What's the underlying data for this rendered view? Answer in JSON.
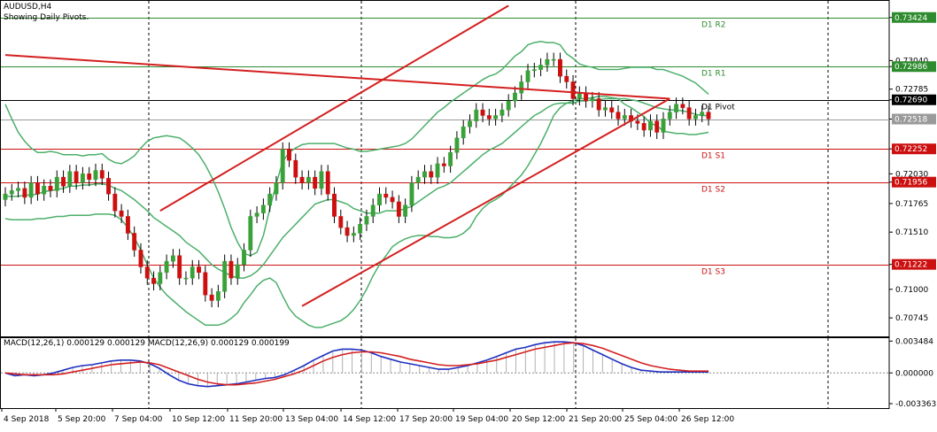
{
  "header": {
    "symbol_label": "AUDUSD,H4",
    "subtitle": "Showing Daily Pivots."
  },
  "colors": {
    "background": "#ffffff",
    "grid": "#000000",
    "bull_body": "#3aa13a",
    "bear_body": "#cc1010",
    "bollinger": "#4caf6a",
    "trendline": "#d41f1f",
    "pivot_resistance": "#2e8b2e",
    "pivot_support": "#cc1010",
    "pivot_main": "#000000",
    "macd_main": "#1f2fbf",
    "macd_signal": "#d41f1f",
    "macd_hist": "#b0b0b0",
    "price_tag_green": "#2e8b2e",
    "price_tag_red": "#cc1010",
    "price_tag_black": "#000000",
    "price_tag_gray": "#9a9a9a"
  },
  "chart_data": [
    {
      "type": "candlestick",
      "title": "AUDUSD,H4",
      "ylim": [
        0.7058,
        0.7358
      ],
      "y_ticks": [
        "0.73424",
        "0.73040",
        "0.72986",
        "0.72785",
        "0.72690",
        "0.72518",
        "0.72252",
        "0.72030",
        "0.71956",
        "0.71765",
        "0.71510",
        "0.71222",
        "0.71000",
        "0.70745"
      ],
      "x_tick_labels": [
        "4 Sep 2018",
        "5 Sep 20:00",
        "7 Sep 04:00",
        "10 Sep 12:00",
        "11 Sep 20:00",
        "13 Sep 04:00",
        "14 Sep 12:00",
        "17 Sep 20:00",
        "19 Sep 04:00",
        "20 Sep 12:00",
        "21 Sep 20:00",
        "25 Sep 04:00",
        "26 Sep 12:00"
      ],
      "pivots": [
        {
          "label": "D1 R2",
          "value": 0.73424,
          "tag": "0.73424",
          "kind": "resistance"
        },
        {
          "label": "D1 R1",
          "value": 0.72986,
          "tag": "0.72986",
          "kind": "resistance"
        },
        {
          "label": "D1 Pivot",
          "value": 0.7269,
          "tag": "0.72690",
          "kind": "pivot"
        },
        {
          "label": "D1 S1",
          "value": 0.72252,
          "tag": "0.72252",
          "kind": "support"
        },
        {
          "label": "D1 S2",
          "value": 0.71956,
          "tag": "0.71956",
          "kind": "support"
        },
        {
          "label": "D1 S3",
          "value": 0.71222,
          "tag": "0.71222",
          "kind": "support"
        }
      ],
      "current_price": {
        "value": 0.72518,
        "tag": "0.72518"
      },
      "close": [
        0.7185,
        0.7188,
        0.719,
        0.7182,
        0.7195,
        0.7185,
        0.7192,
        0.7188,
        0.72,
        0.7192,
        0.7205,
        0.7195,
        0.7203,
        0.7198,
        0.7206,
        0.7199,
        0.7185,
        0.717,
        0.7165,
        0.715,
        0.7135,
        0.712,
        0.711,
        0.7105,
        0.7115,
        0.7125,
        0.713,
        0.711,
        0.711,
        0.712,
        0.7115,
        0.7095,
        0.709,
        0.7098,
        0.7125,
        0.711,
        0.7122,
        0.7135,
        0.7165,
        0.7168,
        0.7175,
        0.7185,
        0.7195,
        0.7225,
        0.7215,
        0.72,
        0.7195,
        0.72,
        0.719,
        0.7205,
        0.7185,
        0.7165,
        0.7155,
        0.7148,
        0.715,
        0.7158,
        0.7165,
        0.7175,
        0.7185,
        0.7182,
        0.7178,
        0.7165,
        0.7175,
        0.7195,
        0.72,
        0.7205,
        0.72,
        0.7212,
        0.721,
        0.7222,
        0.7235,
        0.7245,
        0.725,
        0.726,
        0.7255,
        0.7252,
        0.7255,
        0.726,
        0.7268,
        0.7275,
        0.7285,
        0.7295,
        0.7296,
        0.73,
        0.7305,
        0.7305,
        0.729,
        0.7285,
        0.727,
        0.7275,
        0.7268,
        0.727,
        0.726,
        0.7262,
        0.7258,
        0.7252,
        0.7255,
        0.725,
        0.7248,
        0.7242,
        0.725,
        0.724,
        0.7252,
        0.7258,
        0.7265,
        0.7262,
        0.7252,
        0.7255,
        0.7258,
        0.7252
      ],
      "bollinger_upper": [
        0.7265,
        0.7252,
        0.724,
        0.7232,
        0.7226,
        0.7222,
        0.7222,
        0.7223,
        0.7222,
        0.722,
        0.722,
        0.722,
        0.7219,
        0.722,
        0.722,
        0.7221,
        0.7216,
        0.7213,
        0.7212,
        0.7215,
        0.7219,
        0.7226,
        0.7232,
        0.7235,
        0.7236,
        0.7237,
        0.7236,
        0.7235,
        0.7231,
        0.7226,
        0.722,
        0.7211,
        0.72,
        0.7187,
        0.7172,
        0.7155,
        0.7142,
        0.7132,
        0.713,
        0.7133,
        0.7148,
        0.7172,
        0.7194,
        0.7214,
        0.7222,
        0.7226,
        0.7229,
        0.723,
        0.723,
        0.723,
        0.723,
        0.723,
        0.7228,
        0.7226,
        0.7225,
        0.7223,
        0.7223,
        0.7224,
        0.7225,
        0.7226,
        0.7227,
        0.7228,
        0.723,
        0.7234,
        0.724,
        0.7246,
        0.7252,
        0.7258,
        0.7262,
        0.7267,
        0.7271,
        0.7275,
        0.7279,
        0.7283,
        0.7287,
        0.729,
        0.7292,
        0.7296,
        0.7302,
        0.7308,
        0.7312,
        0.7318,
        0.732,
        0.7321,
        0.732,
        0.732,
        0.7318,
        0.731,
        0.7306,
        0.7301,
        0.7299,
        0.7298,
        0.7296,
        0.7296,
        0.7296,
        0.7296,
        0.7297,
        0.7298,
        0.7298,
        0.7298,
        0.7298,
        0.7296,
        0.7296,
        0.7294,
        0.7292,
        0.729,
        0.7287,
        0.7284,
        0.7279,
        0.7274
      ],
      "bollinger_middle": [
        0.7183,
        0.7183,
        0.7183,
        0.7184,
        0.7184,
        0.7185,
        0.7187,
        0.7188,
        0.7189,
        0.719,
        0.7192,
        0.7192,
        0.7193,
        0.7193,
        0.7194,
        0.7194,
        0.7193,
        0.719,
        0.7188,
        0.7184,
        0.718,
        0.7175,
        0.717,
        0.7164,
        0.716,
        0.7156,
        0.7152,
        0.7148,
        0.7142,
        0.7138,
        0.7134,
        0.7128,
        0.7122,
        0.7118,
        0.7115,
        0.7112,
        0.711,
        0.711,
        0.7112,
        0.7116,
        0.7122,
        0.713,
        0.7138,
        0.7146,
        0.7152,
        0.7158,
        0.7164,
        0.717,
        0.7176,
        0.7178,
        0.718,
        0.718,
        0.7178,
        0.7176,
        0.7172,
        0.717,
        0.7168,
        0.7168,
        0.7168,
        0.717,
        0.717,
        0.717,
        0.7172,
        0.7174,
        0.7178,
        0.7182,
        0.7186,
        0.719,
        0.7192,
        0.7195,
        0.72,
        0.7205,
        0.721,
        0.7215,
        0.722,
        0.7224,
        0.7227,
        0.723,
        0.7235,
        0.724,
        0.7245,
        0.725,
        0.7255,
        0.7258,
        0.7262,
        0.7265,
        0.7266,
        0.7266,
        0.7266,
        0.7268,
        0.7268,
        0.7269,
        0.7269,
        0.727,
        0.727,
        0.727,
        0.727,
        0.7269,
        0.7268,
        0.7266,
        0.7264,
        0.7262,
        0.7261,
        0.726,
        0.726,
        0.7259,
        0.7258,
        0.7256,
        0.7255,
        0.7255
      ],
      "bollinger_lower": [
        0.7163,
        0.7162,
        0.7162,
        0.7162,
        0.7162,
        0.7163,
        0.7163,
        0.7164,
        0.7165,
        0.7165,
        0.7166,
        0.7166,
        0.7166,
        0.7166,
        0.7167,
        0.7167,
        0.7167,
        0.7166,
        0.7162,
        0.7155,
        0.7146,
        0.7135,
        0.7122,
        0.711,
        0.7102,
        0.7095,
        0.709,
        0.7085,
        0.708,
        0.7076,
        0.7072,
        0.7068,
        0.7068,
        0.7068,
        0.707,
        0.7074,
        0.7079,
        0.7088,
        0.7095,
        0.7103,
        0.7108,
        0.711,
        0.7106,
        0.7094,
        0.7083,
        0.7076,
        0.7072,
        0.7068,
        0.7066,
        0.7066,
        0.7068,
        0.707,
        0.7072,
        0.7076,
        0.7082,
        0.709,
        0.71,
        0.7112,
        0.7122,
        0.713,
        0.7138,
        0.7142,
        0.7145,
        0.7147,
        0.7148,
        0.7148,
        0.7147,
        0.7147,
        0.7146,
        0.7146,
        0.7147,
        0.715,
        0.7155,
        0.7165,
        0.7172,
        0.7177,
        0.718,
        0.7184,
        0.719,
        0.7196,
        0.7202,
        0.721,
        0.722,
        0.723,
        0.7242,
        0.7255,
        0.7262,
        0.7266,
        0.7268,
        0.727,
        0.727,
        0.7271,
        0.7272,
        0.7272,
        0.7271,
        0.727,
        0.7265,
        0.7262,
        0.7258,
        0.7254,
        0.7248,
        0.7246,
        0.7241,
        0.724,
        0.7239,
        0.7239,
        0.7238,
        0.7238,
        0.7239,
        0.724
      ],
      "trendlines": [
        {
          "name": "upper-channel",
          "x": [
            24,
            78
          ],
          "y": [
            0.717,
            0.7353
          ]
        },
        {
          "name": "lower-channel",
          "x": [
            46,
            103
          ],
          "y": [
            0.7085,
            0.727
          ]
        },
        {
          "name": "horizontal-resistance",
          "x": [
            0,
            103
          ],
          "y": [
            0.7309,
            0.727
          ]
        }
      ]
    },
    {
      "type": "line",
      "title": "MACD(12,26,1) 0.000129 0.000129 MACD(12,26,9) 0.000129 0.000199",
      "ylim": [
        -0.00385,
        0.0039
      ],
      "y_ticks": [
        "0.003484",
        "0.000000",
        "-0.003363"
      ],
      "series": [
        {
          "name": "MACD",
          "values": [
            0.0,
            -0.0003,
            -0.0002,
            -0.0003,
            -0.0002,
            0.0,
            0.0003,
            0.0006,
            0.0008,
            0.0009,
            0.0011,
            0.0013,
            0.0014,
            0.0014,
            0.0013,
            0.001,
            0.0005,
            -0.0002,
            -0.0008,
            -0.0012,
            -0.0014,
            -0.0015,
            -0.0014,
            -0.0013,
            -0.0012,
            -0.001,
            -0.0008,
            -0.0006,
            -0.0005,
            -0.0002,
            0.0003,
            0.0008,
            0.0014,
            0.0019,
            0.0024,
            0.0026,
            0.0026,
            0.0025,
            0.0022,
            0.0018,
            0.0015,
            0.0012,
            0.001,
            0.0008,
            0.0006,
            0.0004,
            0.0004,
            0.0006,
            0.0008,
            0.0011,
            0.0014,
            0.0018,
            0.0022,
            0.0026,
            0.0028,
            0.0031,
            0.0033,
            0.0034,
            0.0034,
            0.0033,
            0.003,
            0.0025,
            0.002,
            0.0015,
            0.001,
            0.0006,
            0.0003,
            0.0002,
            0.0001,
            0.0001,
            0.0001,
            0.0001,
            0.0001,
            0.0001
          ]
        },
        {
          "name": "Signal",
          "values": [
            0.0,
            -0.0001,
            -0.0002,
            -0.0002,
            -0.0002,
            -0.0002,
            -0.0001,
            0.0001,
            0.0003,
            0.0005,
            0.0007,
            0.0009,
            0.001,
            0.0011,
            0.0012,
            0.0011,
            0.0009,
            0.0005,
            0.0001,
            -0.0003,
            -0.0007,
            -0.001,
            -0.0012,
            -0.0013,
            -0.0013,
            -0.0012,
            -0.0011,
            -0.0009,
            -0.0007,
            -0.0004,
            -0.0001,
            0.0003,
            0.0008,
            0.0013,
            0.0017,
            0.002,
            0.0022,
            0.0023,
            0.0023,
            0.0022,
            0.002,
            0.0018,
            0.0015,
            0.0013,
            0.0011,
            0.0009,
            0.0008,
            0.0008,
            0.0009,
            0.001,
            0.0012,
            0.0014,
            0.0017,
            0.002,
            0.0023,
            0.0026,
            0.0028,
            0.003,
            0.0032,
            0.0033,
            0.0032,
            0.003,
            0.0027,
            0.0023,
            0.0019,
            0.0015,
            0.0011,
            0.0008,
            0.0006,
            0.0004,
            0.0003,
            0.0002,
            0.0002,
            0.0002
          ]
        }
      ]
    }
  ]
}
